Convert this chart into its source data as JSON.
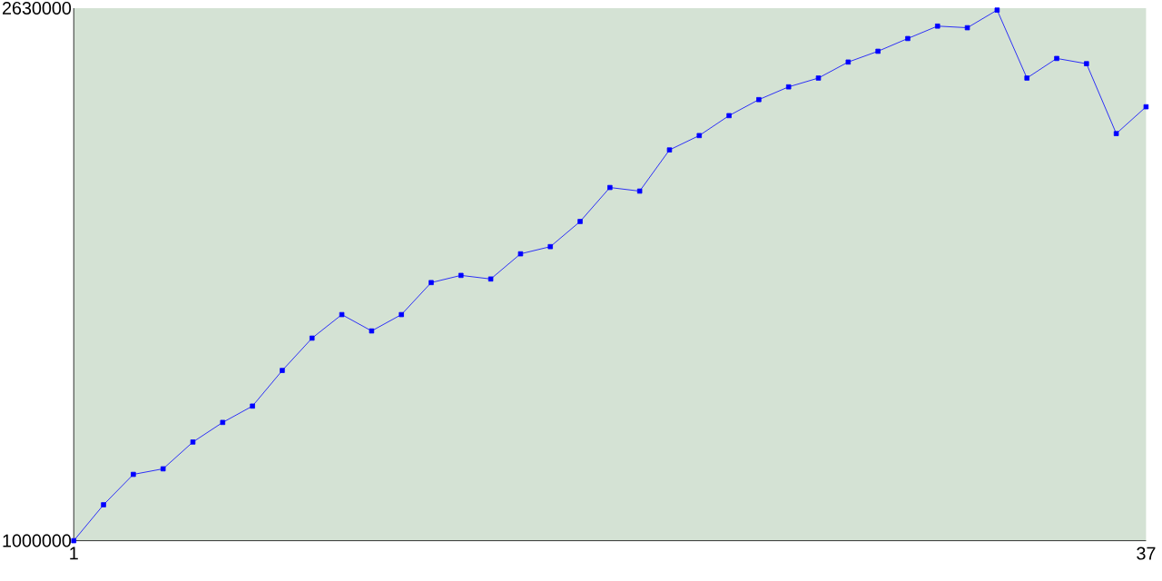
{
  "chart_data": {
    "type": "line",
    "x": [
      1,
      2,
      3,
      4,
      5,
      6,
      7,
      8,
      9,
      10,
      11,
      12,
      13,
      14,
      15,
      16,
      17,
      18,
      19,
      20,
      21,
      22,
      23,
      24,
      25,
      26,
      27,
      28,
      29,
      30,
      31,
      32,
      33,
      34,
      35,
      36,
      37
    ],
    "values": [
      1000000,
      1110000,
      1203000,
      1220000,
      1302000,
      1362000,
      1412000,
      1521000,
      1620000,
      1692000,
      1642000,
      1692000,
      1790000,
      1812000,
      1801000,
      1878000,
      1900000,
      1977000,
      2081000,
      2070000,
      2196000,
      2240000,
      2301000,
      2350000,
      2389000,
      2416000,
      2465000,
      2498000,
      2537000,
      2575000,
      2570000,
      2624000,
      2416000,
      2476000,
      2460000,
      2246000,
      2328000
    ],
    "color": "#0000ff",
    "marker": "square",
    "line_style": "solid",
    "xlim": [
      1,
      37
    ],
    "xticks": [
      1,
      37
    ],
    "ylim": [
      1000000,
      2630000
    ],
    "yticks": [
      1000000,
      2630000
    ]
  }
}
